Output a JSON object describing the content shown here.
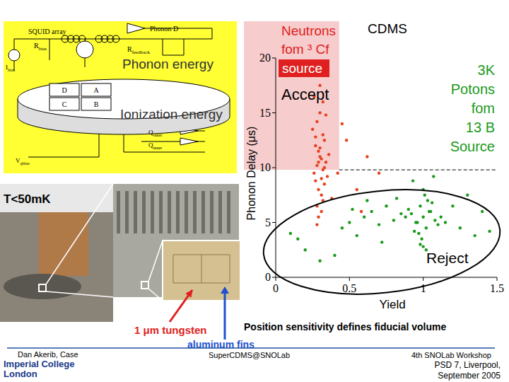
{
  "chart_data": {
    "type": "scatter",
    "title": "CDMS",
    "x_label": "Yield",
    "y_label": "Phonon Delay (μs)",
    "xlim": [
      0,
      1.5
    ],
    "ylim": [
      0,
      20
    ],
    "xticks": [
      0,
      0.5,
      1,
      1.5
    ],
    "yticks": [
      0,
      5,
      10,
      15,
      20
    ],
    "grid": false,
    "series": [
      {
        "color": "#e8401c",
        "marker": "circle",
        "x": [
          0.26,
          0.28,
          0.3,
          0.32,
          0.34,
          0.27,
          0.29,
          0.31,
          0.33,
          0.35,
          0.25,
          0.28,
          0.3,
          0.32,
          0.36,
          0.27,
          0.29,
          0.31,
          0.33,
          0.26,
          0.3,
          0.34,
          0.28,
          0.32,
          0.29,
          0.31,
          0.27,
          0.33,
          0.3,
          0.28,
          0.32,
          0.3,
          0.29,
          0.31,
          0.42,
          0.48,
          0.55,
          0.62,
          0.7,
          0.45,
          0.38,
          0.58
        ],
        "values": [
          9.5,
          10.2,
          11.0,
          9.8,
          10.5,
          12.0,
          11.5,
          10.8,
          12.5,
          9.2,
          13.5,
          14.2,
          15.0,
          13.0,
          11.2,
          8.8,
          8.0,
          7.5,
          8.5,
          16.5,
          17.5,
          14.8,
          6.5,
          7.0,
          5.5,
          6.0,
          12.8,
          10.0,
          18.5,
          4.8,
          16.0,
          11.8,
          10.5,
          9.0,
          9.5,
          12.5,
          8.0,
          11.0,
          9.5,
          14.0,
          7.2,
          6.0
        ]
      },
      {
        "color": "#1a9a1a",
        "marker": "circle",
        "x": [
          1.0,
          0.95,
          1.05,
          0.98,
          1.02,
          0.92,
          1.08,
          0.97,
          1.03,
          0.9,
          1.1,
          0.99,
          1.01,
          0.94,
          1.06,
          0.88,
          1.12,
          1.0,
          0.96,
          1.04,
          0.85,
          0.8,
          0.75,
          0.7,
          0.65,
          0.6,
          0.55,
          0.5,
          0.45,
          0.82,
          0.72,
          0.62,
          0.52,
          1.15,
          1.2,
          1.25,
          1.3,
          1.35,
          1.4,
          1.45,
          0.2,
          0.15,
          0.3,
          0.4,
          0.1,
          1.0,
          0.93,
          1.07,
          0.98,
          1.02
        ],
        "values": [
          5.5,
          5.0,
          6.0,
          6.5,
          4.5,
          5.8,
          5.2,
          4.0,
          7.0,
          6.2,
          4.8,
          3.5,
          7.5,
          4.2,
          6.8,
          5.5,
          5.5,
          8.0,
          5.0,
          6.0,
          5.8,
          5.2,
          6.5,
          4.8,
          6.0,
          5.5,
          3.8,
          5.0,
          4.5,
          7.2,
          3.2,
          7.0,
          6.2,
          5.0,
          6.5,
          4.5,
          7.5,
          3.8,
          6.0,
          4.2,
          2.5,
          3.5,
          1.5,
          2.0,
          4.0,
          2.8,
          8.8,
          9.2,
          3.0,
          2.5
        ]
      }
    ],
    "annotations": {
      "neutrons": [
        "Neutrons",
        "fom ³ Cf"
      ],
      "neutron_source": "source",
      "accept": "Accept",
      "photons": [
        "3K",
        "Potons",
        "fom",
        "13 B",
        "Source"
      ],
      "reject": "Reject"
    },
    "cut_delay": 9.8,
    "cut_yield": 0.43
  },
  "diagram": {
    "squid": "SQUID array",
    "phonon_channel": "Phonon D",
    "r_feedback": {
      "main": "R",
      "sub": "feedback"
    },
    "r_bias": {
      "main": "R",
      "sub": "bias"
    },
    "i_bias": {
      "main": "I",
      "sub": "bias"
    },
    "phonon_energy": "Phonon energy",
    "quadrants": [
      "D",
      "A",
      "C",
      "B"
    ],
    "ionization_energy": "Ionization energy",
    "q_outer": {
      "main": "Q",
      "sub": "outer"
    },
    "q_inner": {
      "main": "Q",
      "sub": "inner"
    },
    "v_qbias": {
      "main": "V",
      "sub": "qbias"
    }
  },
  "photo": {
    "temperature": "T<50mK",
    "tungsten": "1 μm tungsten",
    "fins": "aluminum fins"
  },
  "caption": "Position sensitivity defines fiducial volume",
  "footer": {
    "author": "Dan Akerib, Case",
    "center": "SuperCDMS@SNOLab",
    "workshop": "4th SNOLab Workshop",
    "logo": [
      "Imperial College",
      "London"
    ],
    "event": [
      "PSD 7, Liverpool,",
      "September 2005"
    ]
  }
}
